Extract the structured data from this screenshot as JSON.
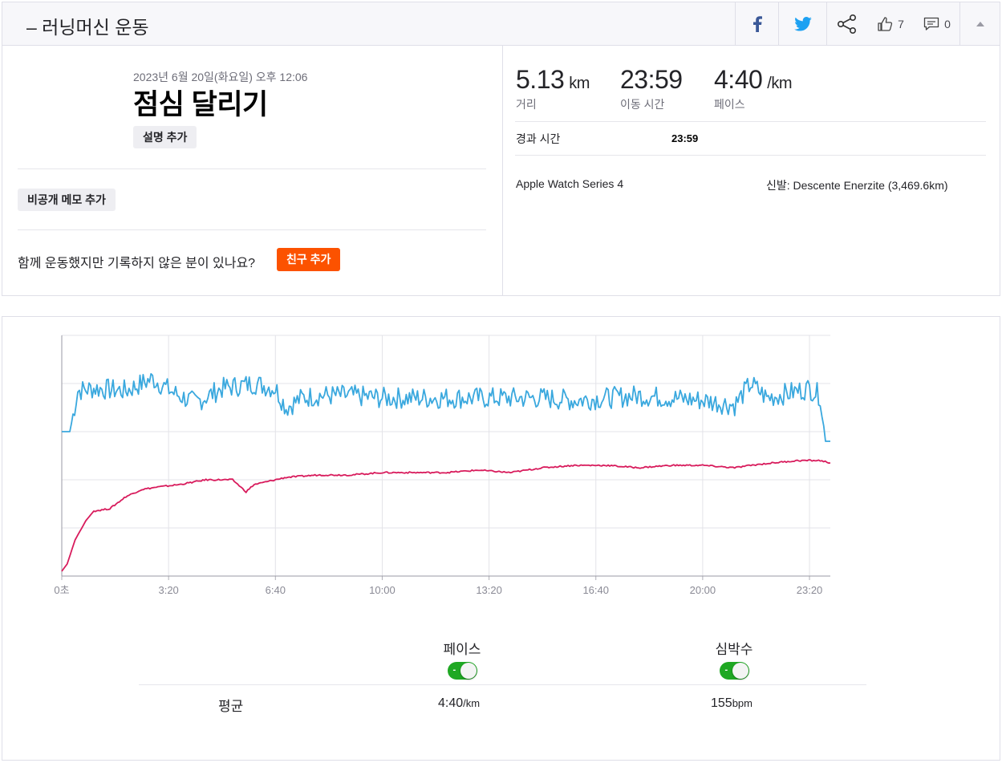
{
  "header": {
    "title": "– 러닝머신 운동",
    "kudos_count": "7",
    "comment_count": "0",
    "facebook_color": "#3b5998",
    "twitter_color": "#1da1f2"
  },
  "activity": {
    "datetime": "2023년 6월 20일(화요일) 오후 12:06",
    "name": "점심 달리기",
    "add_description_label": "설명 추가",
    "add_private_note_label": "비공개 메모 추가",
    "friends_question": "함께 운동했지만 기록하지 않은 분이 있나요?",
    "add_friends_label": "친구 추가"
  },
  "stats": {
    "distance": {
      "value": "5.13",
      "unit": "km",
      "label": "거리"
    },
    "moving_time": {
      "value": "23:59",
      "label": "이동 시간"
    },
    "pace": {
      "value": "4:40",
      "unit": "/km",
      "label": "페이스"
    },
    "elapsed_label": "경과 시간",
    "elapsed_value": "23:59",
    "device": "Apple Watch Series 4",
    "shoes": "신발: Descente Enerzite (3,469.6km)"
  },
  "chart_data": {
    "type": "line",
    "x_tick_labels": [
      "0초",
      "3:20",
      "6:40",
      "10:00",
      "13:20",
      "16:40",
      "20:00",
      "23:20"
    ],
    "x_range_seconds": [
      0,
      1439
    ],
    "grid": true,
    "series": [
      {
        "name": "페이스",
        "color": "#3aa8de",
        "points": [
          [
            0,
            0.6
          ],
          [
            15,
            0.6
          ],
          [
            30,
            0.77
          ],
          [
            60,
            0.78
          ],
          [
            120,
            0.77
          ],
          [
            170,
            0.82
          ],
          [
            210,
            0.76
          ],
          [
            250,
            0.72
          ],
          [
            300,
            0.78
          ],
          [
            360,
            0.8
          ],
          [
            400,
            0.78
          ],
          [
            420,
            0.7
          ],
          [
            450,
            0.74
          ],
          [
            480,
            0.75
          ],
          [
            540,
            0.75
          ],
          [
            600,
            0.74
          ],
          [
            660,
            0.74
          ],
          [
            720,
            0.74
          ],
          [
            780,
            0.74
          ],
          [
            840,
            0.74
          ],
          [
            900,
            0.74
          ],
          [
            960,
            0.73
          ],
          [
            1020,
            0.74
          ],
          [
            1080,
            0.75
          ],
          [
            1140,
            0.74
          ],
          [
            1200,
            0.73
          ],
          [
            1260,
            0.71
          ],
          [
            1290,
            0.8
          ],
          [
            1320,
            0.74
          ],
          [
            1360,
            0.76
          ],
          [
            1400,
            0.78
          ],
          [
            1420,
            0.75
          ],
          [
            1430,
            0.56
          ],
          [
            1439,
            0.56
          ]
        ]
      },
      {
        "name": "심박수",
        "color": "#d81b5c",
        "points": [
          [
            0,
            0.02
          ],
          [
            10,
            0.05
          ],
          [
            25,
            0.15
          ],
          [
            45,
            0.23
          ],
          [
            60,
            0.27
          ],
          [
            90,
            0.28
          ],
          [
            120,
            0.33
          ],
          [
            150,
            0.36
          ],
          [
            180,
            0.37
          ],
          [
            220,
            0.38
          ],
          [
            270,
            0.4
          ],
          [
            320,
            0.4
          ],
          [
            345,
            0.35
          ],
          [
            360,
            0.38
          ],
          [
            400,
            0.4
          ],
          [
            420,
            0.41
          ],
          [
            480,
            0.42
          ],
          [
            540,
            0.42
          ],
          [
            600,
            0.43
          ],
          [
            660,
            0.43
          ],
          [
            720,
            0.43
          ],
          [
            780,
            0.44
          ],
          [
            840,
            0.43
          ],
          [
            900,
            0.45
          ],
          [
            960,
            0.46
          ],
          [
            1020,
            0.46
          ],
          [
            1080,
            0.45
          ],
          [
            1140,
            0.46
          ],
          [
            1200,
            0.46
          ],
          [
            1260,
            0.45
          ],
          [
            1290,
            0.46
          ],
          [
            1330,
            0.47
          ],
          [
            1380,
            0.48
          ],
          [
            1420,
            0.48
          ],
          [
            1439,
            0.47
          ]
        ]
      }
    ]
  },
  "toggles": {
    "pace_label": "페이스",
    "hr_label": "심박수",
    "pace_on": true,
    "hr_on": true,
    "toggle_color": "#1fa823"
  },
  "averages": {
    "label": "평균",
    "pace_value": "4:40",
    "pace_unit": "/km",
    "hr_value": "155",
    "hr_unit": "bpm"
  }
}
